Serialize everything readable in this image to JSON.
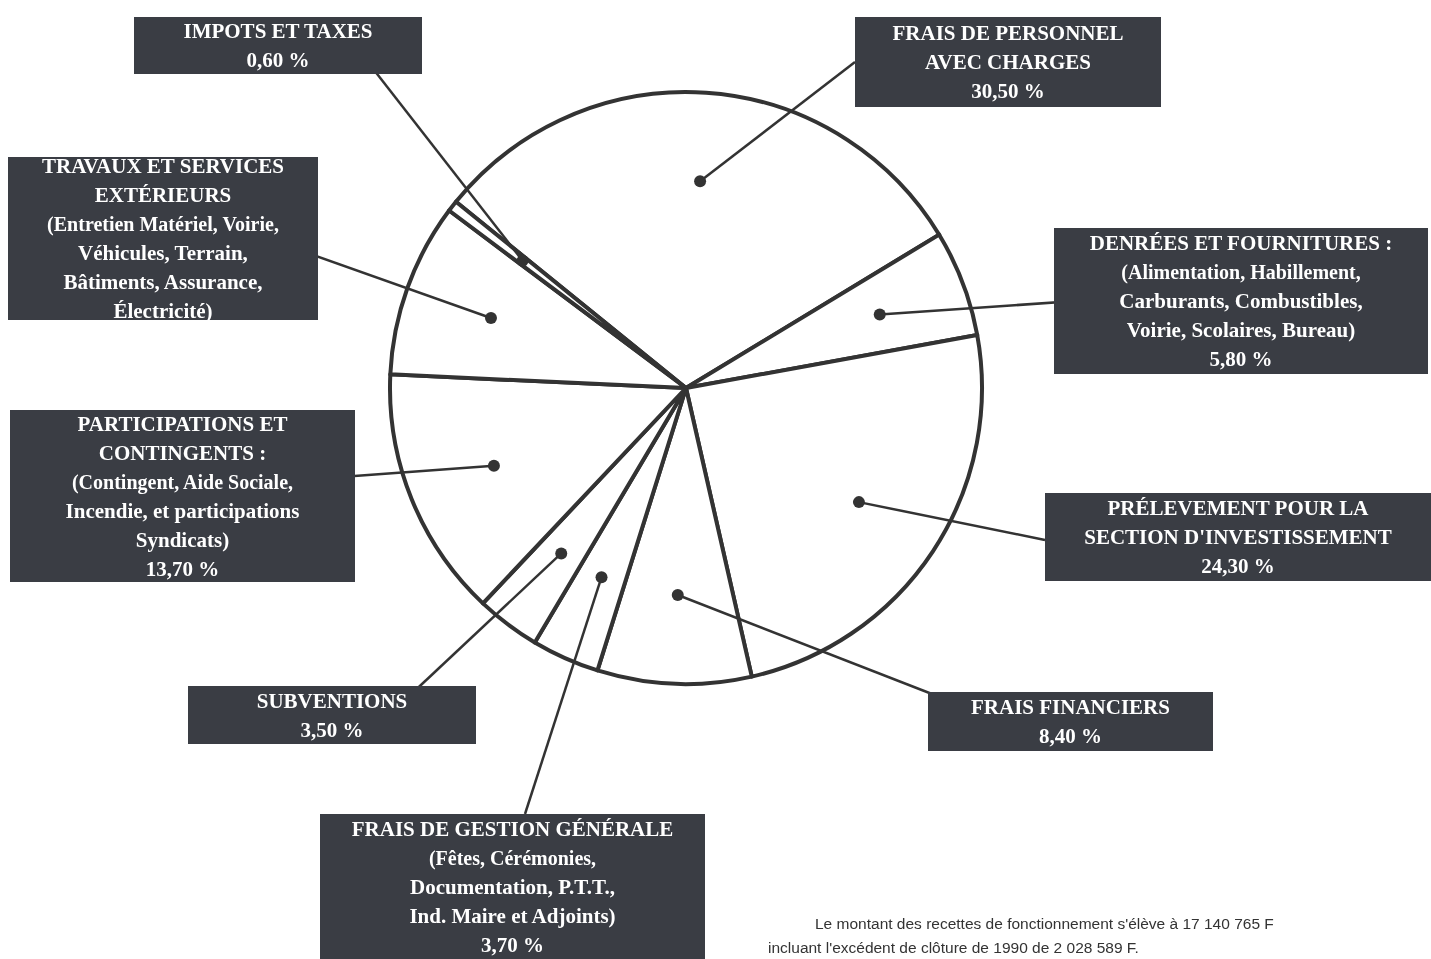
{
  "chart_data": {
    "type": "pie",
    "categories": [
      "FRAIS DE PERSONNEL\nAVEC CHARGES",
      "DENRÉES ET FOURNITURES :\n(Alimentation, Habillement,\nCarburants, Combustibles,\nVoirie, Scolaires, Bureau)",
      "PRÉLEVEMENT POUR LA\nSECTION D'INVESTISSEMENT",
      "FRAIS FINANCIERS",
      "FRAIS DE GESTION GÉNÉRALE\n(Fêtes, Cérémonies,\nDocumentation, P.T.T.,\nInd. Maire et Adjoints)",
      "SUBVENTIONS",
      "PARTICIPATIONS ET\nCONTINGENTS :\n(Contingent, Aide Sociale,\nIncendie, et participations\nSyndicats)",
      "TRAVAUX ET SERVICES\nEXTÉRIEURS\n(Entretien Matériel, Voirie,\nVéhicules, Terrain,\nBâtiments, Assurance,\nÉlectricité)",
      "IMPOTS ET TAXES"
    ],
    "values": [
      30.5,
      5.8,
      24.3,
      8.4,
      3.7,
      3.5,
      13.7,
      9.5,
      0.6
    ],
    "value_labels": [
      "30,50 %",
      "5,80 %",
      "24,30 %",
      "8,40 %",
      "3,70 %",
      "3,50 %",
      "13,70 %",
      null,
      "0,60 %"
    ],
    "colors": [
      "#ffffff",
      "#ffffff",
      "#ffffff",
      "#ffffff",
      "#ffffff",
      "#ffffff",
      "#ffffff",
      "#ffffff",
      "#ffffff"
    ],
    "annotations": [
      "Le montant des recettes de fonctionnement s'élève à 17 140 765 F incluant l'excédent de clôture de 1990 de 2 028 589 F."
    ]
  }
}
